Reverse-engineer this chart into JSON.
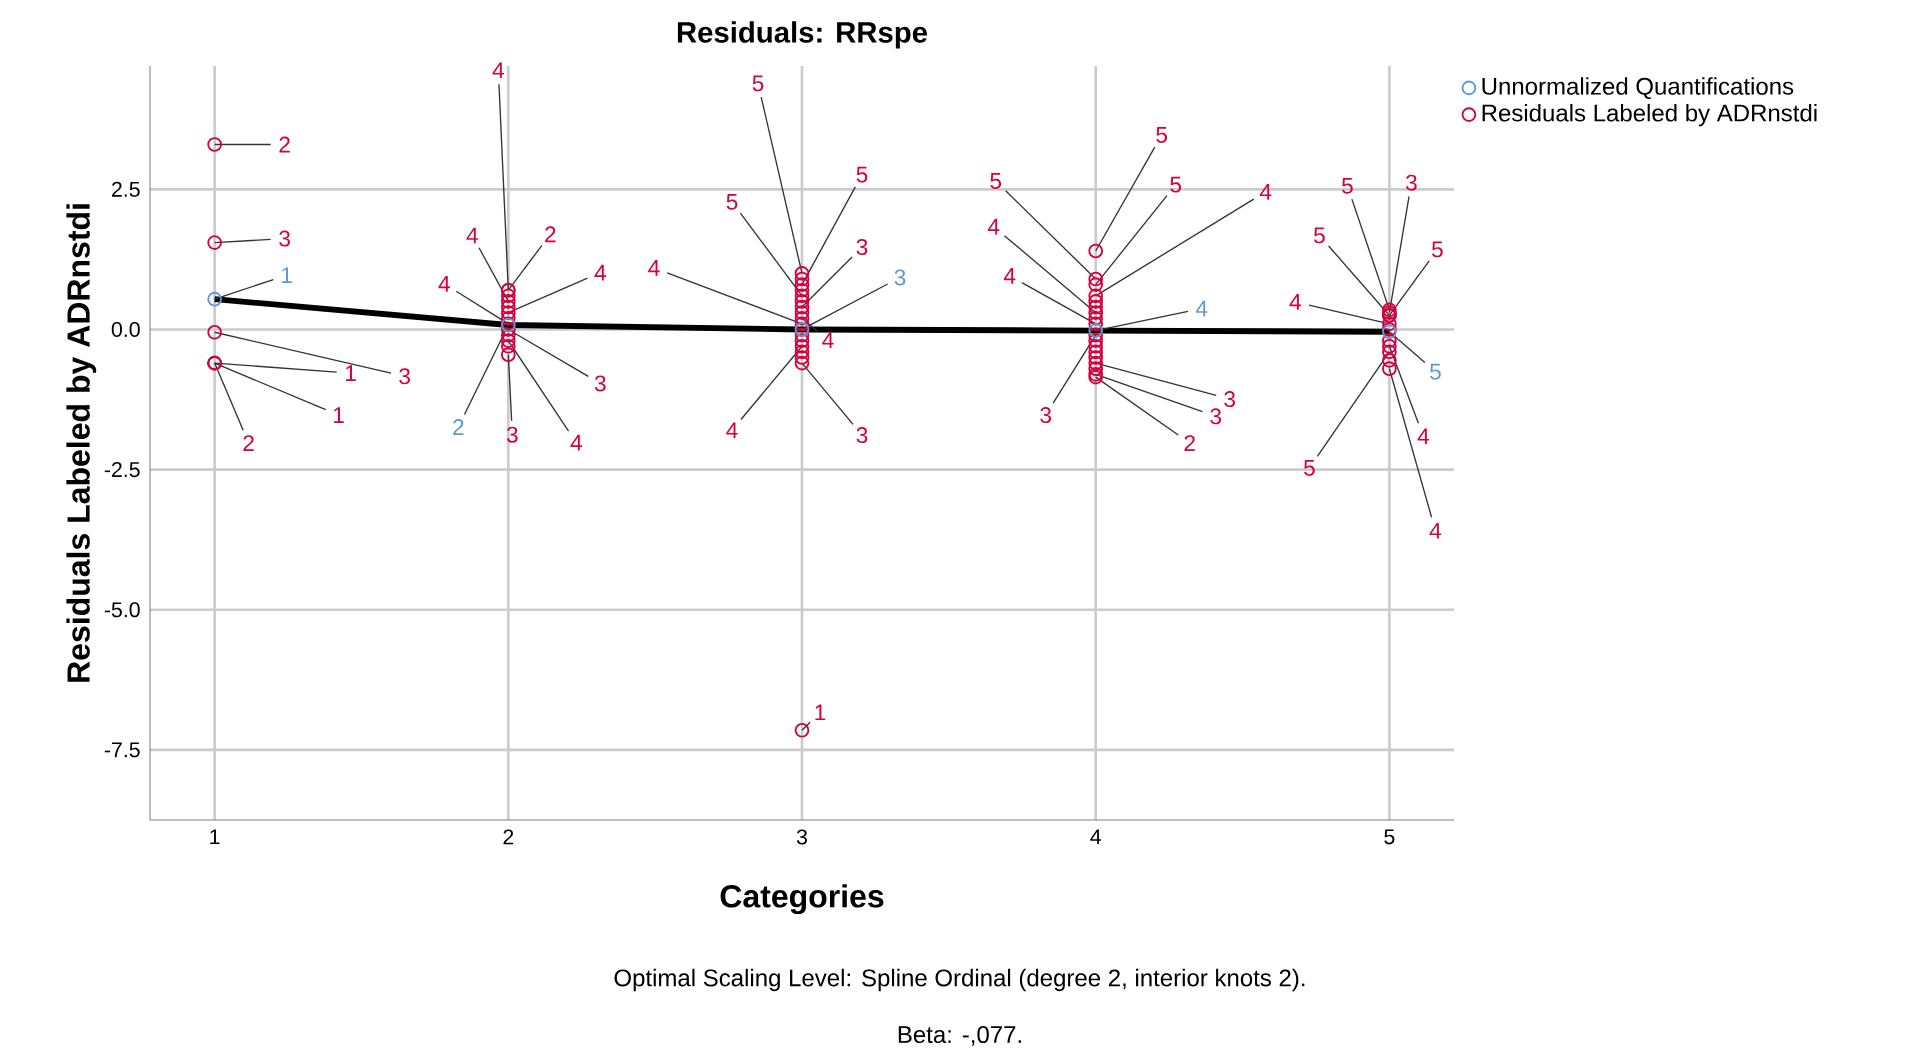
{
  "chart_data": {
    "type": "scatter",
    "title": "Residuals: RRspe",
    "xlabel": "Categories",
    "ylabel": "Residuals Labeled by ADRnstdi",
    "xlim": [
      0.78,
      5.22
    ],
    "ylim": [
      -8.75,
      4.7
    ],
    "xticks": [
      1,
      2,
      3,
      4,
      5
    ],
    "yticks": [
      {
        "value": -7.5,
        "label": "-7.5"
      },
      {
        "value": -5,
        "label": "-5.0"
      },
      {
        "value": -2.5,
        "label": "-2.5"
      },
      {
        "value": 0,
        "label": "0.0"
      },
      {
        "value": 2.5,
        "label": "2.5"
      }
    ],
    "grid": true,
    "legend": "top right",
    "series": [
      {
        "type": "line",
        "marker": "none",
        "color": "#000000",
        "x": [
          1,
          2,
          3,
          4,
          5
        ],
        "values": [
          0.54,
          0.08,
          0.0,
          -0.02,
          -0.04
        ]
      },
      {
        "name": "Unnormalized Quantifications",
        "marker": "circle",
        "color": "#5b9bd5",
        "x": [
          1,
          2,
          3,
          4,
          5
        ],
        "values": [
          0.54,
          0.08,
          0.0,
          -0.02,
          -0.04
        ]
      },
      {
        "name": "Residuals Labeled by ADRnstdi",
        "marker": "circle",
        "color": "#d7003f",
        "x": [
          1,
          1,
          1,
          1,
          1,
          1,
          2,
          2,
          2,
          2,
          2,
          2,
          2,
          2,
          2,
          2,
          2,
          2,
          2,
          3,
          3,
          3,
          3,
          3,
          3,
          3,
          3,
          3,
          3,
          3,
          3,
          3,
          3,
          3,
          3,
          3,
          3,
          4,
          4,
          4,
          4,
          4,
          4,
          4,
          4,
          4,
          4,
          4,
          4,
          4,
          4,
          4,
          4,
          4,
          4,
          5,
          5,
          5,
          5,
          5,
          5,
          5,
          5,
          5,
          5,
          5
        ],
        "values": [
          3.3,
          1.55,
          -0.05,
          -0.6,
          -0.6,
          -0.6,
          0.7,
          0.7,
          0.5,
          0.3,
          0.1,
          0.0,
          -0.2,
          -0.45,
          0.6,
          0.4,
          0.2,
          -0.1,
          -0.3,
          1.0,
          0.8,
          0.6,
          0.4,
          0.2,
          0.0,
          -0.3,
          -0.6,
          -7.15,
          -0.1,
          -0.2,
          -0.4,
          -0.5,
          0.1,
          0.3,
          0.5,
          0.7,
          0.9,
          1.4,
          0.9,
          0.8,
          0.6,
          0.3,
          0.1,
          -0.6,
          -0.8,
          -0.85,
          -0.1,
          0.5,
          0.4,
          0.2,
          -0.2,
          -0.3,
          -0.4,
          -0.5,
          -0.7,
          0.35,
          0.3,
          0.25,
          0.25,
          0.1,
          -0.3,
          -0.4,
          -0.7,
          0.0,
          -0.2,
          -0.55
        ]
      }
    ],
    "annotations": [
      "Optimal Scaling Level: Spline Ordinal (degree 2, interior knots 2).",
      "Beta: -,077.",
      {
        "text": "1",
        "x": 1,
        "y": 0.54
      },
      {
        "text": "2",
        "x": 2,
        "y": 0.08
      },
      {
        "text": "3",
        "x": 3,
        "y": 0.0
      },
      {
        "text": "4",
        "x": 4,
        "y": -0.02
      },
      {
        "text": "5",
        "x": 5,
        "y": -0.04
      },
      {
        "text": "2",
        "x": 1,
        "y": 3.3
      },
      {
        "text": "3",
        "x": 1,
        "y": 1.55
      },
      {
        "text": "3",
        "x": 1,
        "y": -0.05
      },
      {
        "text": "1",
        "x": 1,
        "y": -0.6
      },
      {
        "text": "1",
        "x": 1,
        "y": -0.6
      },
      {
        "text": "2",
        "x": 1,
        "y": -0.6
      },
      {
        "text": "4",
        "x": 2,
        "y": 0.7
      },
      {
        "text": "2",
        "x": 2,
        "y": 0.7
      },
      {
        "text": "4",
        "x": 2,
        "y": 0.5
      },
      {
        "text": "4",
        "x": 2,
        "y": 0.3
      },
      {
        "text": "4",
        "x": 2,
        "y": 0.1
      },
      {
        "text": "3",
        "x": 2,
        "y": 0.0
      },
      {
        "text": "4",
        "x": 2,
        "y": -0.2
      },
      {
        "text": "3",
        "x": 2,
        "y": -0.45
      },
      {
        "text": "5",
        "x": 3,
        "y": 1.0
      },
      {
        "text": "5",
        "x": 3,
        "y": 0.8
      },
      {
        "text": "5",
        "x": 3,
        "y": 0.6
      },
      {
        "text": "3",
        "x": 3,
        "y": 0.4
      },
      {
        "text": "4",
        "x": 3,
        "y": 0.2
      },
      {
        "text": "4",
        "x": 3,
        "y": 0.1
      },
      {
        "text": "4",
        "x": 3,
        "y": -0.3
      },
      {
        "text": "3",
        "x": 3,
        "y": -0.6
      },
      {
        "text": "1",
        "x": 3,
        "y": -7.15
      },
      {
        "text": "5",
        "x": 4,
        "y": 1.4
      },
      {
        "text": "5",
        "x": 4,
        "y": 0.9
      },
      {
        "text": "5",
        "x": 4,
        "y": 0.8
      },
      {
        "text": "4",
        "x": 4,
        "y": 0.6
      },
      {
        "text": "4",
        "x": 4,
        "y": 0.3
      },
      {
        "text": "4",
        "x": 4,
        "y": 0.1
      },
      {
        "text": "3",
        "x": 4,
        "y": -0.6
      },
      {
        "text": "3",
        "x": 4,
        "y": -0.8
      },
      {
        "text": "2",
        "x": 4,
        "y": -0.85
      },
      {
        "text": "3",
        "x": 4,
        "y": -0.1
      },
      {
        "text": "5",
        "x": 5,
        "y": 0.35
      },
      {
        "text": "3",
        "x": 5,
        "y": 0.3
      },
      {
        "text": "5",
        "x": 5,
        "y": 0.25
      },
      {
        "text": "5",
        "x": 5,
        "y": 0.25
      },
      {
        "text": "4",
        "x": 5,
        "y": 0.1
      },
      {
        "text": "4",
        "x": 5,
        "y": -0.3
      },
      {
        "text": "5",
        "x": 5,
        "y": -0.4
      },
      {
        "text": "4",
        "x": 5,
        "y": -0.7
      }
    ]
  }
}
